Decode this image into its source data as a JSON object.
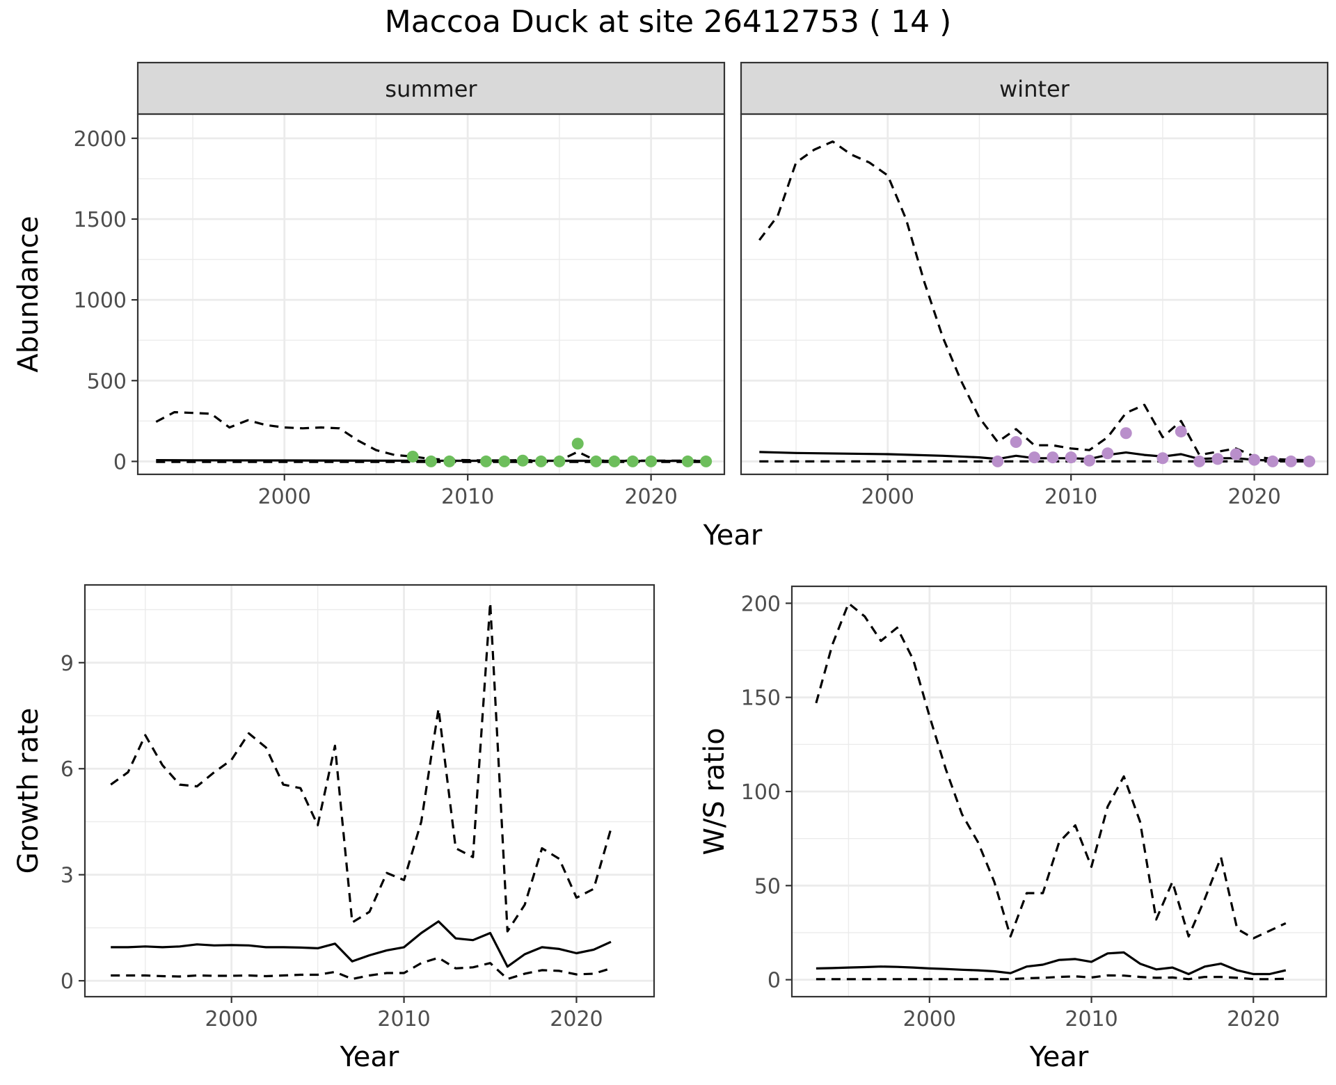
{
  "figure": {
    "title": "Maccoa Duck at site 26412753 ( 14 )"
  },
  "colors": {
    "summer_points": "#6DBE5C",
    "winter_points": "#B98FCB",
    "line": "#000000",
    "strip": "#D9D9D9",
    "grid": "#EBEBEB"
  },
  "chart_data": [
    {
      "type": "line",
      "facet": "summer",
      "strip_label": "summer",
      "xlabel": "Year",
      "ylabel": "Abundance",
      "xlim": [
        1992,
        2024
      ],
      "ylim": [
        -80,
        2150
      ],
      "xticks": [
        2000,
        2010,
        2020
      ],
      "yticks": [
        0,
        500,
        1000,
        1500,
        2000
      ],
      "grid": true,
      "series": [
        {
          "style": "solid",
          "x": [
            1993,
            1995,
            2000,
            2005,
            2010,
            2015,
            2020,
            2023
          ],
          "y": [
            8,
            7,
            6,
            5,
            4,
            4,
            3,
            3
          ]
        },
        {
          "style": "dashed",
          "x": [
            1993,
            1994,
            1995,
            1996,
            1997,
            1998,
            1999,
            2000,
            2001,
            2002,
            2003,
            2004,
            2005,
            2006,
            2007,
            2008,
            2009,
            2010,
            2011,
            2012,
            2013,
            2014,
            2015,
            2016,
            2017,
            2018,
            2019,
            2020,
            2021,
            2022,
            2023
          ],
          "y": [
            245,
            305,
            300,
            295,
            210,
            255,
            225,
            210,
            205,
            210,
            205,
            130,
            70,
            40,
            30,
            15,
            10,
            8,
            6,
            6,
            8,
            5,
            5,
            60,
            5,
            5,
            5,
            5,
            5,
            5,
            5
          ]
        },
        {
          "style": "dashed",
          "x": [
            1993,
            2023
          ],
          "y": [
            -3,
            -3
          ]
        }
      ],
      "points": {
        "x": [
          2007,
          2008,
          2009,
          2011,
          2012,
          2013,
          2014,
          2015,
          2016,
          2017,
          2018,
          2019,
          2020,
          2022,
          2023
        ],
        "y": [
          30,
          0,
          0,
          0,
          0,
          5,
          0,
          0,
          110,
          0,
          0,
          0,
          0,
          0,
          0
        ]
      }
    },
    {
      "type": "line",
      "facet": "winter",
      "strip_label": "winter",
      "xlabel": "Year",
      "ylabel": "Abundance",
      "xlim": [
        1992,
        2024
      ],
      "ylim": [
        -80,
        2150
      ],
      "xticks": [
        2000,
        2010,
        2020
      ],
      "yticks": [
        0,
        500,
        1000,
        1500,
        2000
      ],
      "grid": true,
      "series": [
        {
          "style": "solid",
          "x": [
            1993,
            1995,
            2000,
            2003,
            2005,
            2006,
            2007,
            2008,
            2009,
            2010,
            2011,
            2012,
            2013,
            2014,
            2015,
            2016,
            2017,
            2018,
            2019,
            2020,
            2021,
            2022,
            2023
          ],
          "y": [
            58,
            52,
            45,
            35,
            25,
            15,
            35,
            20,
            20,
            20,
            15,
            40,
            55,
            40,
            30,
            45,
            15,
            20,
            20,
            10,
            5,
            3,
            3
          ]
        },
        {
          "style": "dashed",
          "x": [
            1993,
            1994,
            1995,
            1996,
            1997,
            1998,
            1999,
            2000,
            2001,
            2002,
            2003,
            2004,
            2005,
            2006,
            2007,
            2008,
            2009,
            2010,
            2011,
            2012,
            2013,
            2014,
            2015,
            2016,
            2017,
            2018,
            2019,
            2020,
            2021,
            2022,
            2023
          ],
          "y": [
            1370,
            1520,
            1850,
            1930,
            1980,
            1900,
            1850,
            1770,
            1500,
            1110,
            770,
            500,
            270,
            120,
            200,
            100,
            100,
            80,
            70,
            150,
            300,
            350,
            150,
            250,
            40,
            60,
            80,
            30,
            15,
            10,
            8
          ]
        },
        {
          "style": "dashed",
          "x": [
            1993,
            2023
          ],
          "y": [
            0,
            0
          ]
        }
      ],
      "points": {
        "x": [
          2006,
          2007,
          2008,
          2009,
          2010,
          2011,
          2012,
          2013,
          2015,
          2016,
          2017,
          2018,
          2019,
          2020,
          2021,
          2022,
          2023
        ],
        "y": [
          0,
          120,
          25,
          25,
          25,
          5,
          50,
          175,
          20,
          185,
          0,
          15,
          45,
          10,
          0,
          0,
          0
        ]
      }
    },
    {
      "type": "line",
      "xlabel": "Year",
      "ylabel": "Growth rate",
      "xlim": [
        1991.5,
        2024.5
      ],
      "ylim": [
        -0.45,
        11.2
      ],
      "xticks": [
        2000,
        2010,
        2020
      ],
      "yticks": [
        0,
        3,
        6,
        9
      ],
      "grid": true,
      "series": [
        {
          "style": "solid",
          "x": [
            1993,
            1994,
            1995,
            1996,
            1997,
            1998,
            1999,
            2000,
            2001,
            2002,
            2003,
            2004,
            2005,
            2006,
            2007,
            2008,
            2009,
            2010,
            2011,
            2012,
            2013,
            2014,
            2015,
            2016,
            2017,
            2018,
            2019,
            2020,
            2021,
            2022
          ],
          "y": [
            0.95,
            0.95,
            0.97,
            0.95,
            0.97,
            1.03,
            1.0,
            1.01,
            1.0,
            0.95,
            0.95,
            0.94,
            0.92,
            1.05,
            0.55,
            0.72,
            0.86,
            0.95,
            1.35,
            1.68,
            1.2,
            1.15,
            1.35,
            0.4,
            0.75,
            0.95,
            0.9,
            0.78,
            0.88,
            1.1
          ]
        },
        {
          "style": "dashed",
          "x": [
            1993,
            1994,
            1995,
            1996,
            1997,
            1998,
            1999,
            2000,
            2001,
            2002,
            2003,
            2004,
            2005,
            2006,
            2007,
            2008,
            2009,
            2010,
            2011,
            2012,
            2013,
            2014,
            2015,
            2016,
            2017,
            2018,
            2019,
            2020,
            2021,
            2022
          ],
          "y": [
            5.55,
            5.9,
            6.95,
            6.1,
            5.55,
            5.5,
            5.9,
            6.25,
            7.0,
            6.6,
            5.55,
            5.45,
            4.4,
            6.65,
            1.65,
            1.95,
            3.05,
            2.85,
            4.5,
            7.7,
            3.75,
            3.5,
            10.7,
            1.4,
            2.15,
            3.75,
            3.45,
            2.35,
            2.6,
            4.3
          ]
        },
        {
          "style": "dashed",
          "x": [
            1993,
            1994,
            1995,
            1996,
            1997,
            1998,
            1999,
            2000,
            2001,
            2002,
            2003,
            2004,
            2005,
            2006,
            2007,
            2008,
            2009,
            2010,
            2011,
            2012,
            2013,
            2014,
            2015,
            2016,
            2017,
            2018,
            2019,
            2020,
            2021,
            2022
          ],
          "y": [
            0.15,
            0.15,
            0.15,
            0.13,
            0.12,
            0.15,
            0.14,
            0.14,
            0.15,
            0.13,
            0.15,
            0.17,
            0.17,
            0.25,
            0.05,
            0.15,
            0.22,
            0.22,
            0.5,
            0.65,
            0.35,
            0.38,
            0.5,
            0.05,
            0.2,
            0.3,
            0.28,
            0.18,
            0.2,
            0.35
          ]
        }
      ]
    },
    {
      "type": "line",
      "xlabel": "Year",
      "ylabel": "W/S ratio",
      "xlim": [
        1991.5,
        2024.5
      ],
      "ylim": [
        -9,
        209
      ],
      "xticks": [
        2000,
        2010,
        2020
      ],
      "yticks": [
        0,
        50,
        100,
        150,
        200
      ],
      "grid": true,
      "series": [
        {
          "style": "solid",
          "x": [
            1993,
            1994,
            1995,
            1996,
            1997,
            1998,
            1999,
            2000,
            2001,
            2002,
            2003,
            2004,
            2005,
            2006,
            2007,
            2008,
            2009,
            2010,
            2011,
            2012,
            2013,
            2014,
            2015,
            2016,
            2017,
            2018,
            2019,
            2020,
            2021,
            2022
          ],
          "y": [
            6,
            6.2,
            6.5,
            6.7,
            7,
            6.8,
            6.5,
            6,
            5.7,
            5.3,
            5,
            4.5,
            3.5,
            7,
            8,
            10.5,
            11,
            9.5,
            14,
            14.5,
            8.5,
            5.5,
            6.5,
            3,
            7,
            8.5,
            5,
            3,
            3,
            5
          ]
        },
        {
          "style": "dashed",
          "x": [
            1993,
            1994,
            1995,
            1996,
            1997,
            1998,
            1999,
            2000,
            2001,
            2002,
            2003,
            2004,
            2005,
            2006,
            2007,
            2008,
            2009,
            2010,
            2011,
            2012,
            2013,
            2014,
            2015,
            2016,
            2017,
            2018,
            2019,
            2020,
            2021,
            2022
          ],
          "y": [
            147,
            178,
            200,
            193,
            180,
            187,
            170,
            140,
            112,
            88,
            73,
            52,
            23,
            46,
            46,
            73,
            82,
            60,
            92,
            108,
            84,
            32,
            52,
            23,
            43,
            65,
            27,
            22,
            26,
            30
          ]
        },
        {
          "style": "dashed",
          "x": [
            1993,
            2000,
            2005,
            2006,
            2007,
            2008,
            2009,
            2010,
            2011,
            2012,
            2013,
            2014,
            2015,
            2016,
            2017,
            2018,
            2019,
            2020,
            2021,
            2022
          ],
          "y": [
            0.3,
            0.3,
            0.3,
            0.8,
            1.0,
            1.5,
            1.8,
            1.2,
            2.3,
            2.2,
            1.5,
            1.0,
            1.2,
            0.3,
            1.5,
            1.5,
            1.0,
            0.3,
            0.3,
            0.5
          ]
        }
      ]
    }
  ]
}
